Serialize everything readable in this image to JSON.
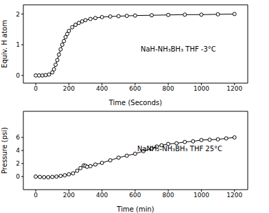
{
  "chart_data": [
    {
      "type": "line",
      "x_label": "Time (Seconds)",
      "y_label": "Equiv. H atom",
      "annotations": [
        "NaH-NH₃BH₃ THF -3°C"
      ],
      "color": "#000000",
      "marker": "open_circle",
      "line_style": "solid",
      "xlim": [
        -75,
        1280
      ],
      "xticks": [
        0,
        200,
        400,
        600,
        800,
        1000,
        1200
      ],
      "ylim": [
        -0.25,
        2.3
      ],
      "yticks": [
        0,
        1,
        2
      ],
      "x": [
        0,
        20,
        40,
        60,
        80,
        100,
        110,
        120,
        130,
        140,
        150,
        160,
        170,
        180,
        190,
        200,
        220,
        240,
        260,
        280,
        300,
        330,
        360,
        400,
        450,
        500,
        550,
        600,
        700,
        800,
        900,
        1000,
        1100,
        1200
      ],
      "values": [
        0,
        0,
        0,
        0.01,
        0.03,
        0.1,
        0.2,
        0.35,
        0.5,
        0.68,
        0.85,
        1.0,
        1.12,
        1.25,
        1.35,
        1.45,
        1.57,
        1.65,
        1.71,
        1.76,
        1.8,
        1.84,
        1.87,
        1.9,
        1.92,
        1.93,
        1.94,
        1.95,
        1.96,
        1.97,
        1.98,
        1.98,
        1.99,
        2.0
      ]
    },
    {
      "type": "line",
      "x_label": "Time (min)",
      "y_label": "Pressure (psi)",
      "annotations": [
        "NaNH₂-NH₃BH₃ THF 25°C"
      ],
      "color": "#000000",
      "marker": "open_circle",
      "line_style": "solid",
      "xlim": [
        -75,
        1280
      ],
      "xticks": [
        0,
        200,
        400,
        600,
        800,
        1000,
        1200
      ],
      "ylim": [
        -2,
        10
      ],
      "yticks": [
        0,
        2,
        4,
        6
      ],
      "x": [
        0,
        25,
        50,
        75,
        100,
        125,
        150,
        175,
        200,
        225,
        250,
        270,
        290,
        300,
        310,
        330,
        360,
        400,
        450,
        500,
        550,
        600,
        650,
        700,
        730,
        760,
        800,
        850,
        900,
        950,
        1000,
        1050,
        1100,
        1150,
        1200
      ],
      "values": [
        0,
        -0.05,
        -0.1,
        -0.1,
        -0.05,
        0,
        0.1,
        0.2,
        0.35,
        0.5,
        0.9,
        1.3,
        1.7,
        1.65,
        1.5,
        1.6,
        1.85,
        2.1,
        2.5,
        2.9,
        3.2,
        3.5,
        3.9,
        4.3,
        4.6,
        4.8,
        5.0,
        5.1,
        5.3,
        5.4,
        5.6,
        5.65,
        5.7,
        5.85,
        6.0
      ]
    }
  ]
}
